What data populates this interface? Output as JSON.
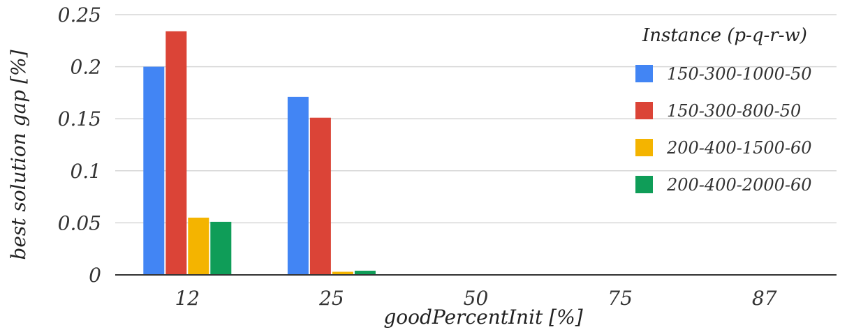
{
  "chart_data": {
    "type": "bar",
    "xlabel": "goodPercentInit [%]",
    "ylabel": "best solution gap [%]",
    "categories": [
      "12",
      "25",
      "50",
      "75",
      "87"
    ],
    "ylim": [
      0,
      0.25
    ],
    "yticks": [
      0,
      0.05,
      0.1,
      0.15,
      0.2,
      0.25
    ],
    "ytick_labels": [
      "0",
      "0.05",
      "0.1",
      "0.15",
      "0.2",
      "0.25"
    ],
    "grid": true,
    "legend": {
      "title": "Instance (p-q-r-w)",
      "placement": "top-right"
    },
    "series": [
      {
        "name": "150-300-1000-50",
        "color": "#4285f4",
        "values": [
          0.2,
          0.171,
          0,
          0,
          0
        ]
      },
      {
        "name": "150-300-800-50",
        "color": "#db4437",
        "values": [
          0.234,
          0.151,
          0,
          0,
          0
        ]
      },
      {
        "name": "200-400-1500-60",
        "color": "#f4b400",
        "values": [
          0.055,
          0.003,
          0,
          0,
          0
        ]
      },
      {
        "name": "200-400-2000-60",
        "color": "#0f9d58",
        "values": [
          0.051,
          0.004,
          0,
          0,
          0
        ]
      }
    ]
  }
}
